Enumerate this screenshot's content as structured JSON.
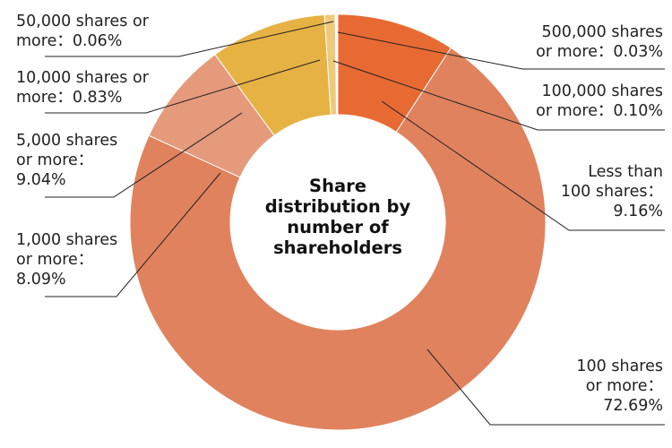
{
  "chart_data": {
    "type": "pie",
    "variant": "donut",
    "title": "Share distribution by number of shareholders",
    "center_title_lines": [
      "Share",
      "distribution by",
      "number of",
      "shareholders"
    ],
    "unit": "%",
    "order": "clockwise from 12 o'clock",
    "slices": [
      {
        "key": "lt100",
        "label": "Less than 100 shares",
        "value": 9.16,
        "color": "#E86A33"
      },
      {
        "key": "s100",
        "label": "100 shares or more",
        "value": 72.69,
        "color": "#E0825E"
      },
      {
        "key": "s1000",
        "label": "1,000 shares or more",
        "value": 8.09,
        "color": "#E59A7B"
      },
      {
        "key": "s5000",
        "label": "5,000 shares or more",
        "value": 9.04,
        "color": "#E7B244"
      },
      {
        "key": "s10000",
        "label": "10,000 shares or more",
        "value": 0.83,
        "color": "#EFC97C"
      },
      {
        "key": "s50000",
        "label": "50,000 shares or more",
        "value": 0.06,
        "color": "#E9E9E9"
      },
      {
        "key": "s100000",
        "label": "100,000 shares or more",
        "value": 0.1,
        "color": "#DCDCDC"
      },
      {
        "key": "s500000",
        "label": "500,000 shares or more",
        "value": 0.03,
        "color": "#BDBDBD"
      }
    ],
    "legend_position": "callouts"
  },
  "labels": {
    "s50000": {
      "lines": [
        "50,000 shares or",
        "more：0.06%"
      ]
    },
    "s10000": {
      "lines": [
        "10,000 shares or",
        "more：0.83%"
      ]
    },
    "s5000": {
      "lines": [
        "5,000 shares",
        "or more：",
        "9.04%"
      ]
    },
    "s1000": {
      "lines": [
        "1,000 shares",
        "or more：",
        "8.09%"
      ]
    },
    "s500000": {
      "lines": [
        "500,000 shares",
        "or more：0.03%"
      ]
    },
    "s100000": {
      "lines": [
        "100,000 shares",
        "or more：0.10%"
      ]
    },
    "lt100": {
      "lines": [
        "Less than",
        "100 shares：",
        "9.16%"
      ]
    },
    "s100": {
      "lines": [
        "100 shares",
        "or more：",
        "72.69%"
      ]
    }
  }
}
